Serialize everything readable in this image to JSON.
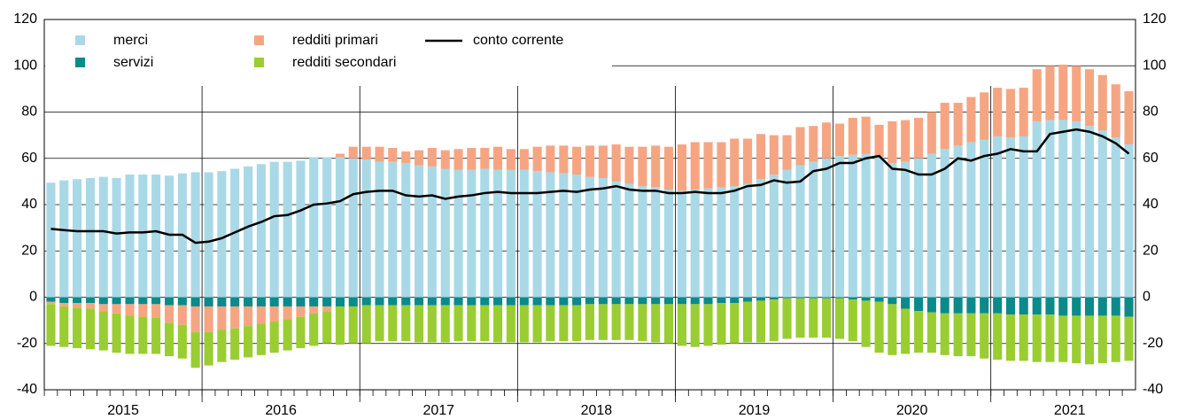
{
  "chart_data": {
    "type": "bar",
    "x": [
      2015.042,
      2015.125,
      2015.208,
      2015.292,
      2015.375,
      2015.458,
      2015.542,
      2015.625,
      2015.708,
      2015.792,
      2015.875,
      2015.958,
      2016.042,
      2016.125,
      2016.208,
      2016.292,
      2016.375,
      2016.458,
      2016.542,
      2016.625,
      2016.708,
      2016.792,
      2016.875,
      2016.958,
      2017.042,
      2017.125,
      2017.208,
      2017.292,
      2017.375,
      2017.458,
      2017.542,
      2017.625,
      2017.708,
      2017.792,
      2017.875,
      2017.958,
      2018.042,
      2018.125,
      2018.208,
      2018.292,
      2018.375,
      2018.458,
      2018.542,
      2018.625,
      2018.708,
      2018.792,
      2018.875,
      2018.958,
      2019.042,
      2019.125,
      2019.208,
      2019.292,
      2019.375,
      2019.458,
      2019.542,
      2019.625,
      2019.708,
      2019.792,
      2019.875,
      2019.958,
      2020.042,
      2020.125,
      2020.208,
      2020.292,
      2020.375,
      2020.458,
      2020.542,
      2020.625,
      2020.708,
      2020.792,
      2020.875,
      2020.958,
      2021.042,
      2021.125,
      2021.208,
      2021.292,
      2021.375,
      2021.458,
      2021.542,
      2021.625,
      2021.708,
      2021.792,
      2021.875
    ],
    "xlim": [
      2015,
      2021.917
    ],
    "xticks": [
      {
        "value": 2015.5,
        "label": "2015"
      },
      {
        "value": 2016.5,
        "label": "2016"
      },
      {
        "value": 2017.5,
        "label": "2017"
      },
      {
        "value": 2018.5,
        "label": "2018"
      },
      {
        "value": 2019.5,
        "label": "2019"
      },
      {
        "value": 2020.5,
        "label": "2020"
      },
      {
        "value": 2021.5,
        "label": "2021"
      }
    ],
    "xgrid": [
      2016,
      2017,
      2018,
      2019,
      2020,
      2021
    ],
    "ylim": [
      -40,
      120
    ],
    "yticks": [
      -40,
      -20,
      0,
      20,
      40,
      60,
      80,
      100,
      120
    ],
    "y2lim": [
      -40,
      120
    ],
    "y2ticks": [
      -40,
      -20,
      0,
      20,
      40,
      60,
      80,
      100,
      120
    ],
    "grid": true,
    "legend": "upper left",
    "series": [
      {
        "name": "merci",
        "type": "bar",
        "color": "#a9d9e6",
        "values": [
          49.5,
          50.5,
          51,
          51.5,
          52,
          51.5,
          53,
          53,
          53,
          52.5,
          53.5,
          54,
          54,
          54.5,
          55.5,
          56.5,
          57.5,
          58.5,
          58.5,
          59,
          60.5,
          60.5,
          60.5,
          60,
          59.5,
          58.5,
          58.5,
          58,
          57,
          56.5,
          55.5,
          55,
          55,
          55.5,
          55,
          55,
          55,
          54.5,
          54,
          53.5,
          53,
          52,
          51.5,
          50,
          49,
          48,
          47.5,
          46.5,
          46,
          46.5,
          47,
          47.5,
          48,
          49,
          51,
          53,
          55,
          57,
          58.5,
          60,
          61,
          61.5,
          62,
          60.5,
          58,
          58.5,
          60,
          62,
          64,
          65.5,
          67,
          68,
          69.5,
          69,
          69.5,
          76,
          76.5,
          76.5,
          76,
          74,
          72,
          69,
          66
        ]
      },
      {
        "name": "servizi",
        "type": "bar",
        "color": "#0b8a8a",
        "values": [
          -2,
          -2.5,
          -2.5,
          -2.5,
          -3,
          -3,
          -3,
          -3,
          -3,
          -3.5,
          -3.5,
          -4,
          -4,
          -4,
          -4,
          -4,
          -4,
          -4,
          -4,
          -4,
          -4,
          -4,
          -4,
          -4,
          -3.5,
          -3.5,
          -3.5,
          -3.5,
          -3.5,
          -3.5,
          -3.5,
          -3.5,
          -3.5,
          -3.5,
          -3.5,
          -3.5,
          -3.5,
          -3.5,
          -3.5,
          -3.5,
          -3.5,
          -3,
          -3,
          -3,
          -3,
          -3,
          -3,
          -3,
          -3,
          -3,
          -3,
          -2.5,
          -2.5,
          -2,
          -1.5,
          -1,
          -0.5,
          -0.5,
          -0.5,
          -0.5,
          -0.5,
          -1,
          -1.5,
          -2,
          -3,
          -5,
          -6,
          -6.5,
          -7,
          -7,
          -7,
          -7,
          -7,
          -7.5,
          -7.5,
          -7.5,
          -7.5,
          -8,
          -8,
          -8,
          -8,
          -8,
          -8.5
        ]
      },
      {
        "name": "redditi primari",
        "type": "bar",
        "color": "#f6a583",
        "values": [
          -1,
          -1.5,
          -2,
          -2.5,
          -3,
          -4,
          -5,
          -5.5,
          -6,
          -7.5,
          -8.5,
          -11,
          -11,
          -10,
          -9.5,
          -8.5,
          -7.5,
          -6.5,
          -5.5,
          -4.5,
          -3,
          -2,
          1.5,
          5,
          5.5,
          6.5,
          6,
          5,
          6.5,
          8,
          8,
          9,
          9.5,
          9,
          10,
          9,
          9,
          10.5,
          11.5,
          12,
          12,
          13.5,
          14,
          16,
          16,
          17,
          18,
          18.5,
          20,
          20.5,
          20,
          19.5,
          20.5,
          19.5,
          19.5,
          17,
          15,
          16.5,
          15.5,
          15.5,
          14,
          16,
          16,
          14,
          18,
          18,
          17.5,
          18,
          20,
          18.5,
          19.5,
          20.5,
          21,
          21,
          21,
          22.5,
          23.5,
          24,
          24,
          24.5,
          24,
          23,
          23
        ]
      },
      {
        "name": "redditi secondari",
        "type": "bar",
        "color": "#9acd32",
        "values": [
          -18,
          -17.5,
          -17.5,
          -17.5,
          -17,
          -17,
          -16.5,
          -16,
          -15.5,
          -14.5,
          -14.5,
          -15.5,
          -14.5,
          -14,
          -13.5,
          -13.5,
          -13.5,
          -13.5,
          -13.5,
          -13.5,
          -14,
          -14,
          -16.5,
          -16,
          -16.5,
          -15.5,
          -15.5,
          -15.5,
          -16,
          -16,
          -16,
          -15.5,
          -15.5,
          -15.5,
          -16,
          -16,
          -16,
          -16,
          -15.5,
          -15.5,
          -15.5,
          -15.5,
          -15.5,
          -15.5,
          -15.5,
          -16,
          -16.5,
          -17,
          -18,
          -18.5,
          -18,
          -18,
          -17.5,
          -17.5,
          -18,
          -18,
          -17.5,
          -17,
          -17,
          -17,
          -17.5,
          -18,
          -20,
          -22,
          -22,
          -19.5,
          -18,
          -17.5,
          -18,
          -18.5,
          -18.5,
          -19.5,
          -20,
          -20,
          -20,
          -20.5,
          -20.5,
          -20,
          -20.5,
          -21,
          -20.5,
          -20,
          -19
        ]
      },
      {
        "name": "conto corrente",
        "type": "line",
        "color": "#000000",
        "values": [
          29.5,
          29,
          28.5,
          28.5,
          28.5,
          27.5,
          28,
          28,
          28.5,
          27,
          27,
          23.5,
          24,
          25.5,
          28,
          30.5,
          32.5,
          35,
          35.5,
          37.5,
          40,
          40.5,
          41.5,
          44.5,
          45.5,
          46,
          46,
          44,
          43.5,
          44,
          42.5,
          43.5,
          44,
          45,
          45.5,
          45,
          45,
          45,
          45.5,
          46,
          45.5,
          46.5,
          47,
          48,
          46.5,
          46,
          46,
          45,
          45,
          45.5,
          45,
          45,
          46,
          48,
          48.5,
          50.5,
          49.5,
          50,
          54.5,
          55.5,
          58,
          58,
          60,
          61,
          55.5,
          55,
          53,
          53,
          55.5,
          60,
          59,
          61,
          62,
          64,
          63,
          63,
          70.5,
          71.5,
          72.5,
          71.5,
          69.5,
          66.5,
          62
        ]
      }
    ]
  }
}
